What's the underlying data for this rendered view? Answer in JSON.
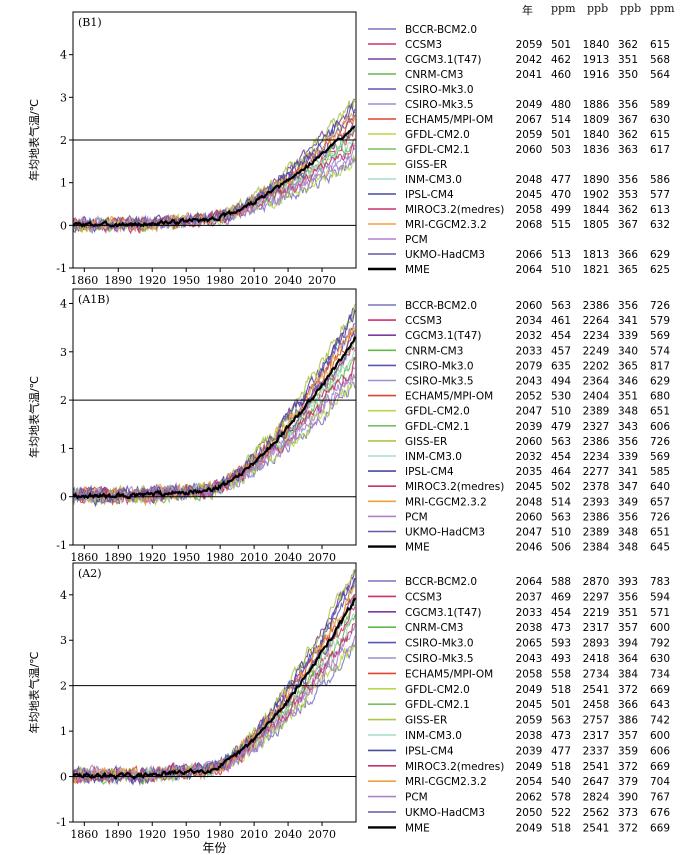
{
  "header": {
    "year": "年",
    "co2": "ppm",
    "ch4": "ppb",
    "n2o": "ppb",
    "eq": "ppm"
  },
  "x_axis_label": "年份",
  "colors": {
    "BCCR-BCM2.0": "#7b74c0",
    "CCSM3": "#d1306a",
    "CGCM3.1(T47)": "#7a3ea0",
    "CNRM-CM3": "#63b84a",
    "CSIRO-Mk3.0": "#5b58b0",
    "CSIRO-Mk3.5": "#9a8fd0",
    "ECHAM5/MPI-OM": "#e0452f",
    "GFDL-CM2.0": "#b6d84a",
    "GFDL-CM2.1": "#78c060",
    "GISS-ER": "#a8c848",
    "INM-CM3.0": "#a8dcc8",
    "IPSL-CM4": "#4a4aa0",
    "MIROC3.2(medres)": "#c8326e",
    "MRI-CGCM2.3.2": "#f0a040",
    "PCM": "#b080c8",
    "UKMO-HadCM3": "#6a55a8",
    "MME": "#000000"
  },
  "chart_data": [
    {
      "type": "line",
      "panel_label": "(B1)",
      "title": "(B1)",
      "xlabel": "",
      "ylabel": "年均地表气温/℃",
      "xlim": [
        1850,
        2100
      ],
      "ylim": [
        -1,
        5
      ],
      "xticks": [
        1860,
        1890,
        1920,
        1950,
        1980,
        2010,
        2040,
        2070
      ],
      "yticks": [
        -1,
        0,
        1,
        2,
        3,
        4
      ],
      "reference_lines": [
        0,
        2
      ],
      "end_range": [
        1.45,
        2.95
      ],
      "mme_end": 2.35,
      "table": [
        {
          "model": "BCCR-BCM2.0",
          "values": []
        },
        {
          "model": "CCSM3",
          "values": [
            "2059",
            "501",
            "1840",
            "362",
            "615"
          ]
        },
        {
          "model": "CGCM3.1(T47)",
          "values": [
            "2042",
            "462",
            "1913",
            "351",
            "568"
          ]
        },
        {
          "model": "CNRM-CM3",
          "values": [
            "2041",
            "460",
            "1916",
            "350",
            "564"
          ]
        },
        {
          "model": "CSIRO-Mk3.0",
          "values": []
        },
        {
          "model": "CSIRO-Mk3.5",
          "values": [
            "2049",
            "480",
            "1886",
            "356",
            "589"
          ]
        },
        {
          "model": "ECHAM5/MPI-OM",
          "values": [
            "2067",
            "514",
            "1809",
            "367",
            "630"
          ]
        },
        {
          "model": "GFDL-CM2.0",
          "values": [
            "2059",
            "501",
            "1840",
            "362",
            "615"
          ]
        },
        {
          "model": "GFDL-CM2.1",
          "values": [
            "2060",
            "503",
            "1836",
            "363",
            "617"
          ]
        },
        {
          "model": "GISS-ER",
          "values": []
        },
        {
          "model": "INM-CM3.0",
          "values": [
            "2048",
            "477",
            "1890",
            "356",
            "586"
          ]
        },
        {
          "model": "IPSL-CM4",
          "values": [
            "2045",
            "470",
            "1902",
            "353",
            "577"
          ]
        },
        {
          "model": "MIROC3.2(medres)",
          "values": [
            "2058",
            "499",
            "1844",
            "362",
            "613"
          ]
        },
        {
          "model": "MRI-CGCM2.3.2",
          "values": [
            "2068",
            "515",
            "1805",
            "367",
            "632"
          ]
        },
        {
          "model": "PCM",
          "values": []
        },
        {
          "model": "UKMO-HadCM3",
          "values": [
            "2066",
            "513",
            "1813",
            "366",
            "629"
          ]
        },
        {
          "model": "MME",
          "values": [
            "2064",
            "510",
            "1821",
            "365",
            "625"
          ]
        }
      ]
    },
    {
      "type": "line",
      "panel_label": "(A1B)",
      "title": "(A1B)",
      "xlabel": "",
      "ylabel": "年均地表气温/℃",
      "xlim": [
        1850,
        2100
      ],
      "ylim": [
        -1,
        4.3
      ],
      "xticks": [
        1860,
        1890,
        1920,
        1950,
        1980,
        2010,
        2040,
        2070
      ],
      "yticks": [
        -1,
        0,
        1,
        2,
        3,
        4
      ],
      "reference_lines": [
        0,
        2
      ],
      "end_range": [
        2.3,
        3.95
      ],
      "mme_end": 3.3,
      "table": [
        {
          "model": "BCCR-BCM2.0",
          "values": [
            "2060",
            "563",
            "2386",
            "356",
            "726"
          ]
        },
        {
          "model": "CCSM3",
          "values": [
            "2034",
            "461",
            "2264",
            "341",
            "579"
          ]
        },
        {
          "model": "CGCM3.1(T47)",
          "values": [
            "2032",
            "454",
            "2234",
            "339",
            "569"
          ]
        },
        {
          "model": "CNRM-CM3",
          "values": [
            "2033",
            "457",
            "2249",
            "340",
            "574"
          ]
        },
        {
          "model": "CSIRO-Mk3.0",
          "values": [
            "2079",
            "635",
            "2202",
            "365",
            "817"
          ]
        },
        {
          "model": "CSIRO-Mk3.5",
          "values": [
            "2043",
            "494",
            "2364",
            "346",
            "629"
          ]
        },
        {
          "model": "ECHAM5/MPI-OM",
          "values": [
            "2052",
            "530",
            "2404",
            "351",
            "680"
          ]
        },
        {
          "model": "GFDL-CM2.0",
          "values": [
            "2047",
            "510",
            "2389",
            "348",
            "651"
          ]
        },
        {
          "model": "GFDL-CM2.1",
          "values": [
            "2039",
            "479",
            "2327",
            "343",
            "606"
          ]
        },
        {
          "model": "GISS-ER",
          "values": [
            "2060",
            "563",
            "2386",
            "356",
            "726"
          ]
        },
        {
          "model": "INM-CM3.0",
          "values": [
            "2032",
            "454",
            "2234",
            "339",
            "569"
          ]
        },
        {
          "model": "IPSL-CM4",
          "values": [
            "2035",
            "464",
            "2277",
            "341",
            "585"
          ]
        },
        {
          "model": "MIROC3.2(medres)",
          "values": [
            "2045",
            "502",
            "2378",
            "347",
            "640"
          ]
        },
        {
          "model": "MRI-CGCM2.3.2",
          "values": [
            "2048",
            "514",
            "2393",
            "349",
            "657"
          ]
        },
        {
          "model": "PCM",
          "values": [
            "2060",
            "563",
            "2386",
            "356",
            "726"
          ]
        },
        {
          "model": "UKMO-HadCM3",
          "values": [
            "2047",
            "510",
            "2389",
            "348",
            "651"
          ]
        },
        {
          "model": "MME",
          "values": [
            "2046",
            "506",
            "2384",
            "348",
            "645"
          ]
        }
      ]
    },
    {
      "type": "line",
      "panel_label": "(A2)",
      "title": "(A2)",
      "xlabel": "年份",
      "ylabel": "年均地表气温/℃",
      "xlim": [
        1850,
        2100
      ],
      "ylim": [
        -1,
        4.7
      ],
      "xticks": [
        1860,
        1890,
        1920,
        1950,
        1980,
        2010,
        2040,
        2070
      ],
      "yticks": [
        -1,
        0,
        1,
        2,
        3,
        4
      ],
      "reference_lines": [
        0,
        2
      ],
      "end_range": [
        2.85,
        4.65
      ],
      "mme_end": 3.9,
      "table": [
        {
          "model": "BCCR-BCM2.0",
          "values": [
            "2064",
            "588",
            "2870",
            "393",
            "783"
          ]
        },
        {
          "model": "CCSM3",
          "values": [
            "2037",
            "469",
            "2297",
            "356",
            "594"
          ]
        },
        {
          "model": "CGCM3.1(T47)",
          "values": [
            "2033",
            "454",
            "2219",
            "351",
            "571"
          ]
        },
        {
          "model": "CNRM-CM3",
          "values": [
            "2038",
            "473",
            "2317",
            "357",
            "600"
          ]
        },
        {
          "model": "CSIRO-Mk3.0",
          "values": [
            "2065",
            "593",
            "2893",
            "394",
            "792"
          ]
        },
        {
          "model": "CSIRO-Mk3.5",
          "values": [
            "2043",
            "493",
            "2418",
            "364",
            "630"
          ]
        },
        {
          "model": "ECHAM5/MPI-OM",
          "values": [
            "2058",
            "558",
            "2734",
            "384",
            "734"
          ]
        },
        {
          "model": "GFDL-CM2.0",
          "values": [
            "2049",
            "518",
            "2541",
            "372",
            "669"
          ]
        },
        {
          "model": "GFDL-CM2.1",
          "values": [
            "2045",
            "501",
            "2458",
            "366",
            "643"
          ]
        },
        {
          "model": "GISS-ER",
          "values": [
            "2059",
            "563",
            "2757",
            "386",
            "742"
          ]
        },
        {
          "model": "INM-CM3.0",
          "values": [
            "2038",
            "473",
            "2317",
            "357",
            "600"
          ]
        },
        {
          "model": "IPSL-CM4",
          "values": [
            "2039",
            "477",
            "2337",
            "359",
            "606"
          ]
        },
        {
          "model": "MIROC3.2(medres)",
          "values": [
            "2049",
            "518",
            "2541",
            "372",
            "669"
          ]
        },
        {
          "model": "MRI-CGCM2.3.2",
          "values": [
            "2054",
            "540",
            "2647",
            "379",
            "704"
          ]
        },
        {
          "model": "PCM",
          "values": [
            "2062",
            "578",
            "2824",
            "390",
            "767"
          ]
        },
        {
          "model": "UKMO-HadCM3",
          "values": [
            "2050",
            "522",
            "2562",
            "373",
            "676"
          ]
        },
        {
          "model": "MME",
          "values": [
            "2049",
            "518",
            "2541",
            "372",
            "669"
          ]
        }
      ]
    }
  ]
}
